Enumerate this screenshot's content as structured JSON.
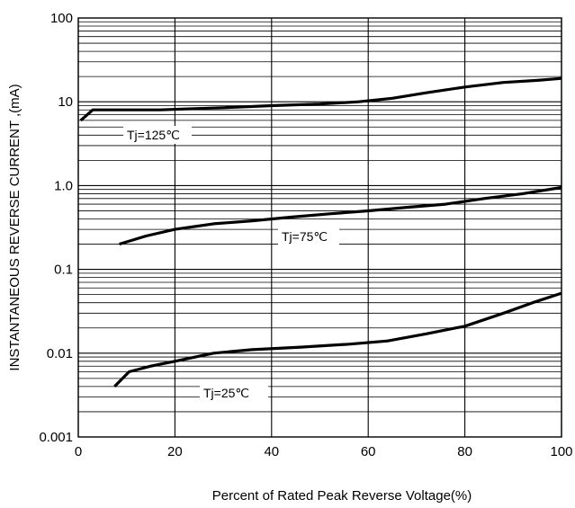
{
  "chart_data": {
    "type": "line",
    "xlabel": "Percent of Rated Peak Reverse Voltage(%)",
    "ylabel": "INSTANTANEOUS  REVERSE  CURRENT ,(mA)",
    "xlim": [
      0,
      100
    ],
    "ylim": [
      0.001,
      100
    ],
    "y_scale": "log",
    "grid": true,
    "x_ticks": [
      "0",
      "20",
      "40",
      "60",
      "80",
      "100"
    ],
    "y_ticks": [
      "0.001",
      "0.01",
      "0.1",
      "1.0",
      "10",
      "100"
    ],
    "series": [
      {
        "name": "Tj=125℃",
        "points": [
          [
            0.5,
            6.0
          ],
          [
            3,
            8.0
          ],
          [
            10,
            8.0
          ],
          [
            17,
            8.0
          ],
          [
            22,
            8.2
          ],
          [
            30,
            8.5
          ],
          [
            40,
            9.0
          ],
          [
            50,
            9.4
          ],
          [
            58,
            10.0
          ],
          [
            65,
            11.0
          ],
          [
            72,
            12.8
          ],
          [
            80,
            15.0
          ],
          [
            88,
            17.0
          ],
          [
            95,
            18.0
          ],
          [
            100,
            19.0
          ]
        ]
      },
      {
        "name": "Tj=75℃",
        "points": [
          [
            8.5,
            0.2
          ],
          [
            14,
            0.25
          ],
          [
            20,
            0.3
          ],
          [
            28,
            0.35
          ],
          [
            36,
            0.38
          ],
          [
            44,
            0.42
          ],
          [
            52,
            0.46
          ],
          [
            60,
            0.5
          ],
          [
            68,
            0.55
          ],
          [
            76,
            0.6
          ],
          [
            84,
            0.7
          ],
          [
            92,
            0.8
          ],
          [
            100,
            0.95
          ]
        ]
      },
      {
        "name": "Tj=25℃",
        "points": [
          [
            7.5,
            0.004
          ],
          [
            10.5,
            0.006
          ],
          [
            15,
            0.007
          ],
          [
            20,
            0.008
          ],
          [
            28,
            0.01
          ],
          [
            36,
            0.011
          ],
          [
            46,
            0.0118
          ],
          [
            56,
            0.0128
          ],
          [
            64,
            0.014
          ],
          [
            72,
            0.017
          ],
          [
            80,
            0.021
          ],
          [
            88,
            0.03
          ],
          [
            94,
            0.04
          ],
          [
            100,
            0.052
          ]
        ]
      }
    ]
  }
}
